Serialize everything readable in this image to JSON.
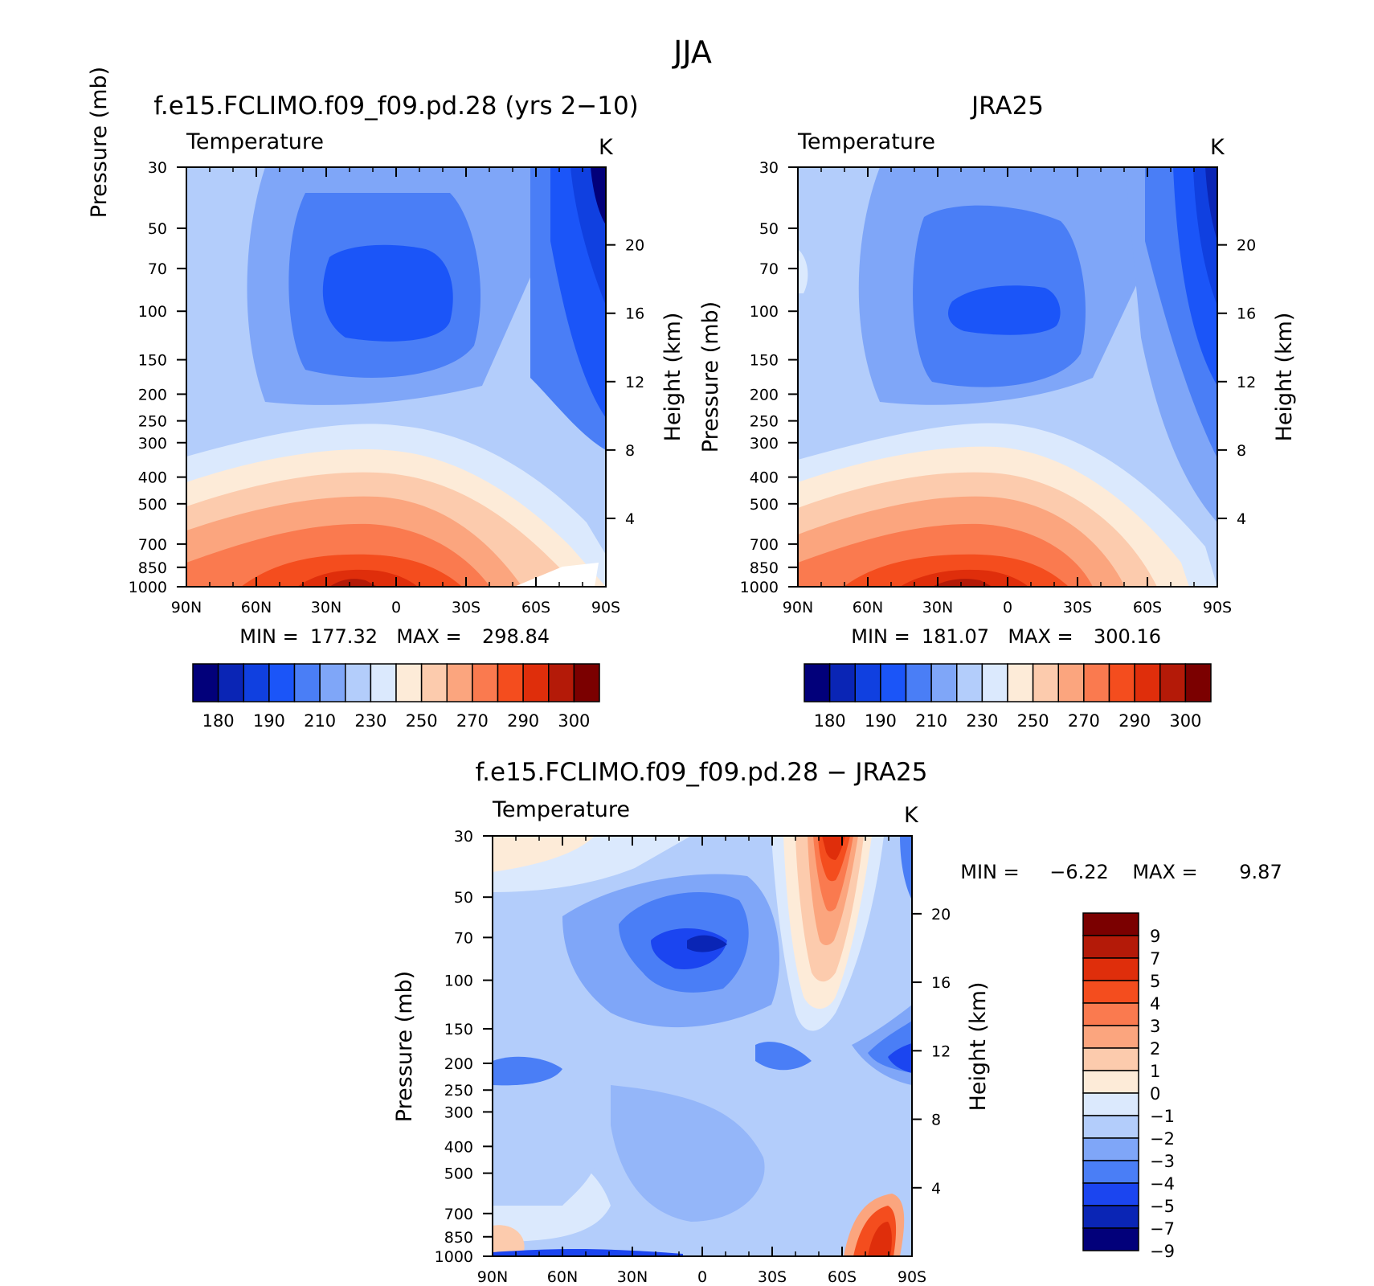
{
  "figure": {
    "title": "JJA",
    "colors": {
      "abs_palette": [
        "#02007a",
        "#0a25b5",
        "#1040e0",
        "#1b55f8",
        "#4a7ef6",
        "#7fa6f8",
        "#b3cdfb",
        "#dbe9fd",
        "#fdebd8",
        "#fccbad",
        "#fba57e",
        "#fa7a4f",
        "#f44d1e",
        "#df2e0b",
        "#b41a08",
        "#7b0000"
      ],
      "diff_palette": [
        "#02007a",
        "#0a25b5",
        "#1b45f0",
        "#4a7ef6",
        "#7fa6f8",
        "#b3cdfb",
        "#dbe9fd",
        "#fdebd8",
        "#fccbad",
        "#fba57e",
        "#fa7a4f",
        "#f44d1e",
        "#df2e0b",
        "#b41a08",
        "#7b0000"
      ]
    }
  },
  "chart_data": [
    {
      "type": "heatmap",
      "title": "f.e15.FCLIMO.f09_f09.pd.28 (yrs 2−10)",
      "left_label": "Temperature",
      "right_label": "K",
      "xlabel": "",
      "ylabel": "Pressure (mb)",
      "y2label": "Height (km)",
      "x_ticks": [
        "90N",
        "60N",
        "30N",
        "0",
        "30S",
        "60S",
        "90S"
      ],
      "y_ticks": [
        "30",
        "50",
        "70",
        "100",
        "150",
        "200",
        "250",
        "300",
        "400",
        "500",
        "700",
        "850",
        "1000"
      ],
      "y2_ticks": [
        "20",
        "16",
        "12",
        "8",
        "4"
      ],
      "stats": {
        "min_label": "MIN =",
        "min": "177.32",
        "max_label": "MAX =",
        "max": "298.84"
      },
      "colorbar_labels": [
        "180",
        "190",
        "210",
        "230",
        "250",
        "270",
        "290",
        "300"
      ],
      "ylim": [
        1000,
        30
      ],
      "xlim": [
        "90N",
        "90S"
      ],
      "min": 177.32,
      "max": 298.84
    },
    {
      "type": "heatmap",
      "title": "JRA25",
      "left_label": "Temperature",
      "right_label": "K",
      "xlabel": "",
      "ylabel": "Pressure (mb)",
      "y2label": "Height (km)",
      "x_ticks": [
        "90N",
        "60N",
        "30N",
        "0",
        "30S",
        "60S",
        "90S"
      ],
      "y_ticks": [
        "30",
        "50",
        "70",
        "100",
        "150",
        "200",
        "250",
        "300",
        "400",
        "500",
        "700",
        "850",
        "1000"
      ],
      "y2_ticks": [
        "20",
        "16",
        "12",
        "8",
        "4"
      ],
      "stats": {
        "min_label": "MIN =",
        "min": "181.07",
        "max_label": "MAX =",
        "max": "300.16"
      },
      "colorbar_labels": [
        "180",
        "190",
        "210",
        "230",
        "250",
        "270",
        "290",
        "300"
      ],
      "ylim": [
        1000,
        30
      ],
      "xlim": [
        "90N",
        "90S"
      ],
      "min": 181.07,
      "max": 300.16
    },
    {
      "type": "heatmap",
      "title": "f.e15.FCLIMO.f09_f09.pd.28 − JRA25",
      "left_label": "Temperature",
      "right_label": "K",
      "xlabel": "",
      "ylabel": "Pressure (mb)",
      "y2label": "Height (km)",
      "x_ticks": [
        "90N",
        "60N",
        "30N",
        "0",
        "30S",
        "60S",
        "90S"
      ],
      "y_ticks": [
        "30",
        "50",
        "70",
        "100",
        "150",
        "200",
        "250",
        "300",
        "400",
        "500",
        "700",
        "850",
        "1000"
      ],
      "y2_ticks": [
        "20",
        "16",
        "12",
        "8",
        "4"
      ],
      "stats": {
        "min_label": "MIN =",
        "min": "−6.22",
        "max_label": "MAX =",
        "max": "9.87"
      },
      "colorbar_labels": [
        "9",
        "7",
        "5",
        "4",
        "3",
        "2",
        "1",
        "0",
        "−1",
        "−2",
        "−3",
        "−4",
        "−5",
        "−7",
        "−9"
      ],
      "ylim": [
        1000,
        30
      ],
      "xlim": [
        "90N",
        "90S"
      ],
      "min": -6.22,
      "max": 9.87
    }
  ]
}
